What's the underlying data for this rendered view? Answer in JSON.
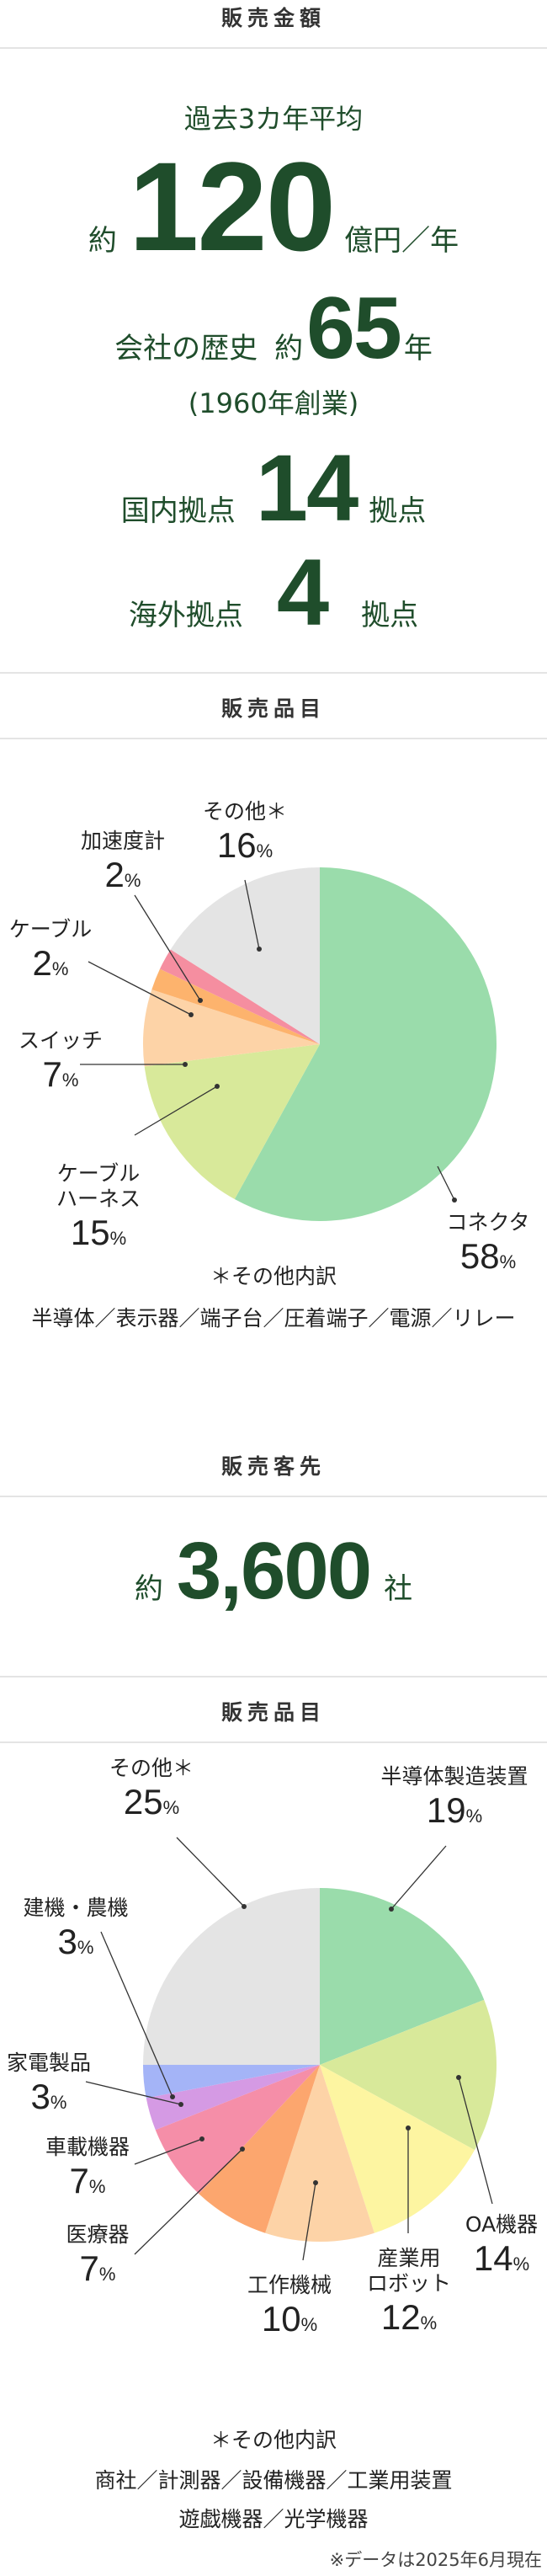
{
  "sales": {
    "header": "販売金額",
    "avg_label": "過去3カ年平均",
    "approx": "約",
    "amount": "120",
    "amount_unit": "億円／年",
    "history_label": "会社の歴史",
    "history_approx": "約",
    "history_years": "65",
    "history_unit": "年",
    "founded": "(1960年創業)",
    "domestic_label": "国内拠点",
    "domestic_count": "14",
    "domestic_unit": "拠点",
    "overseas_label": "海外拠点",
    "overseas_count": "4",
    "overseas_unit": "拠点"
  },
  "products": {
    "header": "販売品目",
    "note_title": "＊その他内訳",
    "note_lines": [
      "半導体／表示器／端子台／圧着端子／電源／リレー"
    ]
  },
  "customers": {
    "header": "販売客先",
    "approx": "約",
    "count": "3,600",
    "unit": "社"
  },
  "industries": {
    "header": "販売品目",
    "note_title": "＊その他内訳",
    "note_lines": [
      "商社／計測器／設備機器／工業用装置",
      "遊戯機器／光学機器"
    ]
  },
  "footer_note": "※データは2025年6月現在",
  "chart_data": [
    {
      "type": "pie",
      "title": "",
      "unit": "%",
      "slices": [
        {
          "label": "コネクタ",
          "value": 58,
          "color": "#9adcab"
        },
        {
          "label": "ケーブル\nハーネス",
          "value": 15,
          "color": "#d8e99a"
        },
        {
          "label": "スイッチ",
          "value": 7,
          "color": "#fdd3a7"
        },
        {
          "label": "ケーブル",
          "value": 2,
          "color": "#fdb36d"
        },
        {
          "label": "加速度計",
          "value": 2,
          "color": "#f58ea0"
        },
        {
          "label": "その他＊",
          "value": 16,
          "color": "#e4e4e4"
        }
      ]
    },
    {
      "type": "pie",
      "title": "",
      "unit": "%",
      "slices": [
        {
          "label": "半導体製造装置",
          "value": 19,
          "color": "#9adcab"
        },
        {
          "label": "OA機器",
          "value": 14,
          "color": "#d8e99a"
        },
        {
          "label": "産業用\nロボット",
          "value": 12,
          "color": "#fdf5a1"
        },
        {
          "label": "工作機械",
          "value": 10,
          "color": "#fdd3a7"
        },
        {
          "label": "医療器",
          "value": 7,
          "color": "#fca66e"
        },
        {
          "label": "車載機器",
          "value": 7,
          "color": "#f58ea8"
        },
        {
          "label": "家電製品",
          "value": 3,
          "color": "#d59ae4"
        },
        {
          "label": "建機・農機",
          "value": 3,
          "color": "#a4b4f7"
        },
        {
          "label": "その他＊",
          "value": 25,
          "color": "#e4e4e4"
        }
      ]
    }
  ]
}
